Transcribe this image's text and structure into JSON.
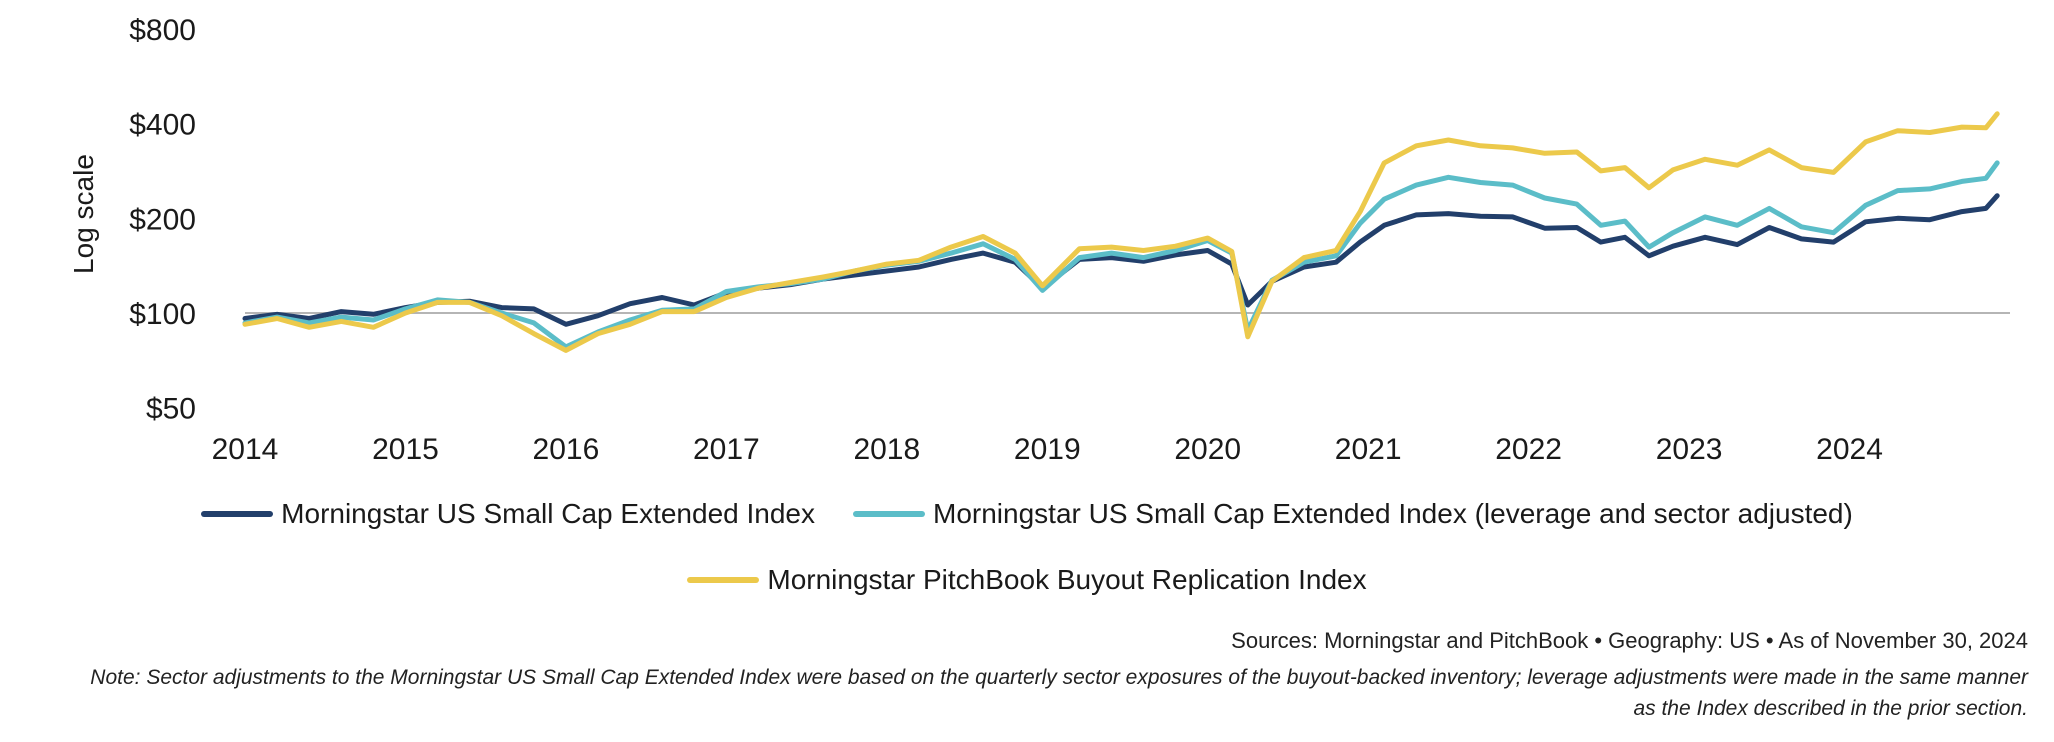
{
  "chart_data": {
    "type": "line",
    "ylabel": "Log scale",
    "yscale": "log",
    "ylim": [
      45,
      800
    ],
    "yticks": [
      50,
      100,
      200,
      400,
      800
    ],
    "ytick_labels": [
      "$50",
      "$100",
      "$200",
      "$400",
      "$800"
    ],
    "reference_line": 100,
    "xlim": [
      2014.0,
      2025.0
    ],
    "xticks": [
      2014,
      2015,
      2016,
      2017,
      2018,
      2019,
      2020,
      2021,
      2022,
      2023,
      2024
    ],
    "xtick_labels": [
      "2014",
      "2015",
      "2016",
      "2017",
      "2018",
      "2019",
      "2020",
      "2021",
      "2022",
      "2023",
      "2024"
    ],
    "series": [
      {
        "name": "Morningstar US Small Cap Extended Index",
        "color": "#223f6b",
        "x": [
          2014.0,
          2014.2,
          2014.4,
          2014.6,
          2014.8,
          2015.0,
          2015.2,
          2015.4,
          2015.6,
          2015.8,
          2016.0,
          2016.2,
          2016.4,
          2016.6,
          2016.8,
          2017.0,
          2017.2,
          2017.4,
          2017.6,
          2017.8,
          2018.0,
          2018.2,
          2018.4,
          2018.6,
          2018.8,
          2018.97,
          2019.2,
          2019.4,
          2019.6,
          2019.8,
          2020.0,
          2020.15,
          2020.25,
          2020.4,
          2020.6,
          2020.8,
          2020.95,
          2021.1,
          2021.3,
          2021.5,
          2021.7,
          2021.9,
          2022.1,
          2022.3,
          2022.45,
          2022.6,
          2022.75,
          2022.9,
          2023.1,
          2023.3,
          2023.5,
          2023.7,
          2023.9,
          2024.1,
          2024.3,
          2024.5,
          2024.7,
          2024.85,
          2024.92
        ],
        "values": [
          96,
          99,
          96,
          101,
          99,
          104,
          108,
          109,
          104,
          103,
          92,
          98,
          107,
          112,
          106,
          116,
          120,
          123,
          128,
          132,
          136,
          140,
          148,
          155,
          145,
          120,
          148,
          150,
          146,
          153,
          158,
          143,
          106,
          126,
          140,
          145,
          168,
          190,
          205,
          207,
          203,
          202,
          186,
          187,
          168,
          174,
          152,
          163,
          174,
          165,
          187,
          172,
          168,
          195,
          200,
          198,
          210,
          215,
          236
        ]
      },
      {
        "name": "Morningstar US Small Cap Extended Index (leverage and sector adjusted)",
        "color": "#5bbdc8",
        "x": [
          2014.0,
          2014.2,
          2014.4,
          2014.6,
          2014.8,
          2015.0,
          2015.2,
          2015.4,
          2015.6,
          2015.8,
          2016.0,
          2016.2,
          2016.4,
          2016.6,
          2016.8,
          2017.0,
          2017.2,
          2017.4,
          2017.6,
          2017.8,
          2018.0,
          2018.2,
          2018.4,
          2018.6,
          2018.8,
          2018.97,
          2019.2,
          2019.4,
          2019.6,
          2019.8,
          2020.0,
          2020.15,
          2020.25,
          2020.4,
          2020.6,
          2020.8,
          2020.95,
          2021.1,
          2021.3,
          2021.5,
          2021.7,
          2021.9,
          2022.1,
          2022.3,
          2022.45,
          2022.6,
          2022.75,
          2022.9,
          2023.1,
          2023.3,
          2023.5,
          2023.7,
          2023.9,
          2024.1,
          2024.3,
          2024.5,
          2024.7,
          2024.85,
          2024.92
        ],
        "values": [
          93,
          97,
          93,
          97,
          95,
          103,
          110,
          108,
          100,
          93,
          78,
          87,
          95,
          102,
          103,
          117,
          121,
          124,
          128,
          136,
          142,
          146,
          155,
          166,
          148,
          118,
          150,
          155,
          150,
          158,
          170,
          155,
          88,
          127,
          145,
          152,
          193,
          230,
          255,
          270,
          260,
          255,
          232,
          222,
          190,
          196,
          162,
          180,
          202,
          190,
          215,
          188,
          180,
          220,
          245,
          248,
          262,
          268,
          300
        ]
      },
      {
        "name": "Morningstar PitchBook Buyout Replication Index",
        "color": "#ecc94b",
        "x": [
          2014.0,
          2014.2,
          2014.4,
          2014.6,
          2014.8,
          2015.0,
          2015.2,
          2015.4,
          2015.6,
          2015.8,
          2016.0,
          2016.2,
          2016.4,
          2016.6,
          2016.8,
          2017.0,
          2017.2,
          2017.4,
          2017.6,
          2017.8,
          2018.0,
          2018.2,
          2018.4,
          2018.6,
          2018.8,
          2018.97,
          2019.2,
          2019.4,
          2019.6,
          2019.8,
          2020.0,
          2020.15,
          2020.25,
          2020.4,
          2020.6,
          2020.8,
          2020.95,
          2021.1,
          2021.3,
          2021.5,
          2021.7,
          2021.9,
          2022.1,
          2022.3,
          2022.45,
          2022.6,
          2022.75,
          2022.9,
          2023.1,
          2023.3,
          2023.5,
          2023.7,
          2023.9,
          2024.1,
          2024.3,
          2024.5,
          2024.7,
          2024.85,
          2024.92
        ],
        "values": [
          92,
          96,
          90,
          94,
          90,
          100,
          108,
          108,
          98,
          86,
          76,
          86,
          92,
          101,
          101,
          112,
          120,
          125,
          130,
          136,
          143,
          147,
          162,
          175,
          155,
          122,
          160,
          162,
          158,
          163,
          173,
          157,
          84,
          126,
          150,
          158,
          210,
          300,
          340,
          355,
          340,
          335,
          322,
          325,
          283,
          290,
          250,
          285,
          308,
          295,
          330,
          290,
          280,
          350,
          380,
          375,
          390,
          388,
          430
        ]
      }
    ]
  },
  "legend": {
    "items": [
      {
        "label": "Morningstar US Small Cap Extended Index",
        "color": "#223f6b"
      },
      {
        "label": "Morningstar US Small Cap Extended Index (leverage and sector adjusted)",
        "color": "#5bbdc8"
      },
      {
        "label": "Morningstar PitchBook Buyout Replication Index",
        "color": "#ecc94b"
      }
    ]
  },
  "footer": {
    "sources": "Sources: Morningstar and PitchBook  •  Geography: US  •  As of November 30, 2024",
    "note": "Note: Sector adjustments to the Morningstar US Small Cap Extended Index were based on the quarterly sector exposures of the buyout-backed inventory; leverage adjustments were made in the same manner as the Index described in the prior section."
  }
}
